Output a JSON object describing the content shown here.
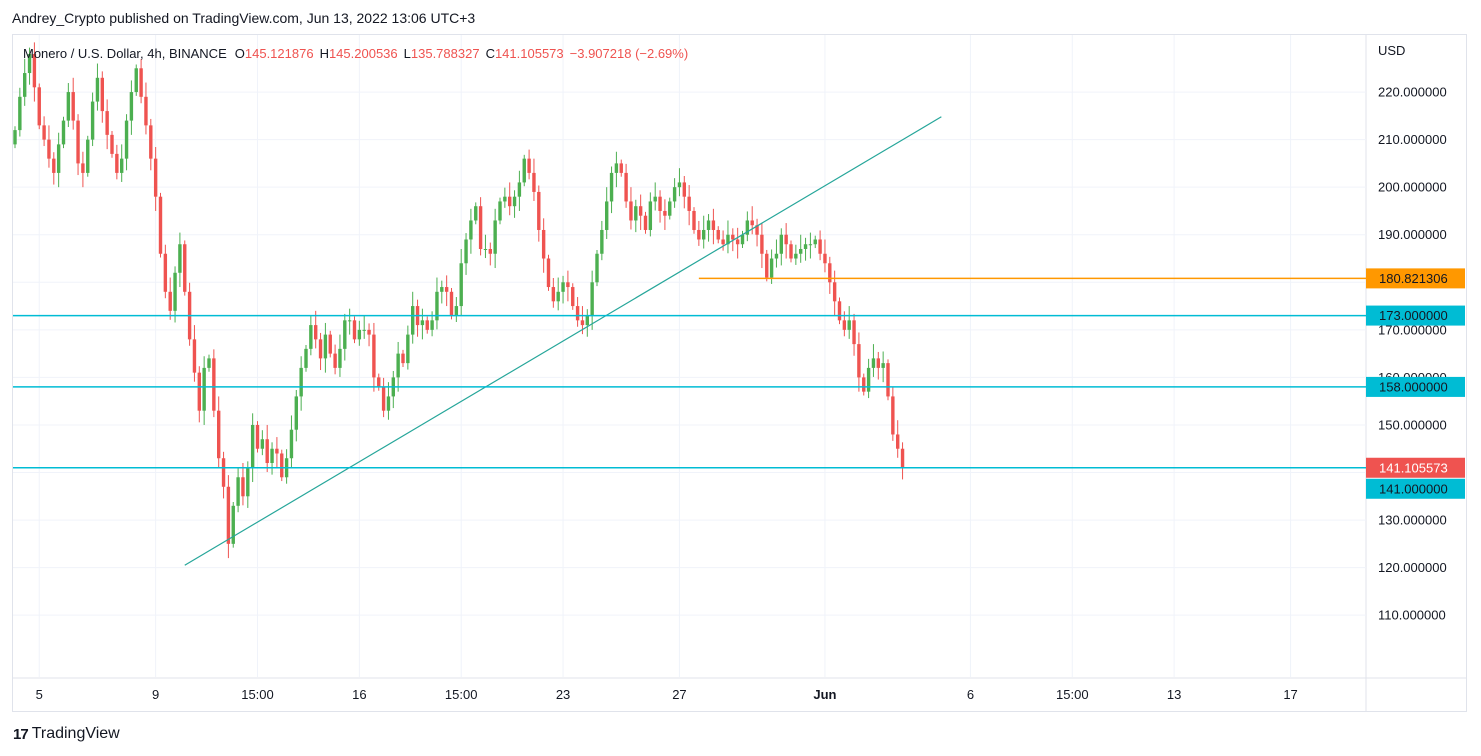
{
  "header": {
    "publish_line": "Andrey_Crypto published on TradingView.com, Jun 13, 2022 13:06 UTC+3"
  },
  "legend": {
    "symbol": "Monero / U.S. Dollar, 4h, BINANCE",
    "o_key": "O",
    "o_val": "145.121876",
    "h_key": "H",
    "h_val": "145.200536",
    "l_key": "L",
    "l_val": "135.788327",
    "c_key": "C",
    "c_val": "141.105573",
    "change": "−3.907218 (−2.69%)"
  },
  "currency": "USD",
  "footer": {
    "brand": "TradingView",
    "logo": "17"
  },
  "colors": {
    "up": "#26a69a",
    "up_body": "#4caf50",
    "down": "#ef5350",
    "level": "#00bcd4",
    "orange": "#ff9800",
    "trend": "#26a69a",
    "grid": "#f0f3fa"
  },
  "chart_data": {
    "type": "candlestick",
    "interval": "4h",
    "y_ticks": [
      110,
      120,
      130,
      140,
      150,
      160,
      170,
      180,
      190,
      200,
      210,
      220
    ],
    "y_tick_labels": [
      "110.000000",
      "120.000000",
      "130.000000",
      "140.000000",
      "150.000000",
      "160.000000",
      "170.000000",
      "180.000000",
      "190.000000",
      "200.000000",
      "210.000000",
      "220.000000"
    ],
    "ylim": [
      97,
      232
    ],
    "x_ticks": [
      {
        "label": "5",
        "bar": 5,
        "bold": false
      },
      {
        "label": "9",
        "bar": 29,
        "bold": false
      },
      {
        "label": "15:00",
        "bar": 50,
        "bold": false
      },
      {
        "label": "16",
        "bar": 71,
        "bold": false
      },
      {
        "label": "15:00",
        "bar": 92,
        "bold": false
      },
      {
        "label": "23",
        "bar": 113,
        "bold": false
      },
      {
        "label": "27",
        "bar": 137,
        "bold": false
      },
      {
        "label": "Jun",
        "bar": 167,
        "bold": true
      },
      {
        "label": "6",
        "bar": 197,
        "bold": false
      },
      {
        "label": "15:00",
        "bar": 218,
        "bold": false
      },
      {
        "label": "13",
        "bar": 239,
        "bold": false
      },
      {
        "label": "17",
        "bar": 263,
        "bold": false
      }
    ],
    "closes": [
      212,
      219,
      224,
      228,
      221,
      213,
      210,
      206,
      203,
      209,
      214,
      220,
      214,
      205,
      203,
      210,
      218,
      223,
      216,
      211,
      207,
      203,
      206,
      214,
      220,
      225,
      219,
      213,
      206,
      198,
      186,
      178,
      174,
      182,
      188,
      178,
      168,
      161,
      153,
      162,
      164,
      153,
      143,
      137,
      125,
      133,
      139,
      135,
      141,
      150,
      145,
      147,
      142,
      145,
      144,
      139,
      143,
      149,
      156,
      162,
      166,
      171,
      168,
      164,
      169,
      165,
      162,
      166,
      172,
      172,
      168,
      170,
      170,
      169,
      160,
      158,
      153,
      156,
      160,
      165,
      163,
      169,
      175,
      171,
      172,
      170,
      172,
      178,
      179,
      178,
      173,
      175,
      184,
      189,
      193,
      196,
      187,
      187,
      186,
      193,
      197,
      198,
      196,
      198,
      201,
      206,
      203,
      199,
      191,
      185,
      179,
      176,
      178,
      180,
      179,
      175,
      172,
      171,
      173,
      180,
      186,
      191,
      197,
      203,
      205,
      203,
      197,
      193,
      196,
      194,
      191,
      197,
      198,
      195,
      194,
      197,
      200,
      201,
      198,
      195,
      191,
      189,
      191,
      193,
      191,
      189,
      188,
      190,
      189,
      188,
      190,
      193,
      192,
      190,
      186,
      181,
      185,
      186,
      190,
      188,
      185,
      186,
      187,
      188,
      188,
      189,
      186,
      184,
      180,
      176,
      172,
      170,
      172,
      167,
      160,
      157,
      162,
      164,
      162,
      163,
      156,
      148,
      145,
      141
    ],
    "last_price": "141.105573",
    "levels": [
      {
        "value": 173,
        "label": "173.000000"
      },
      {
        "value": 158,
        "label": "158.000000"
      },
      {
        "value": 141,
        "label": "141.000000"
      }
    ],
    "resistance": {
      "value": 180.821306,
      "label": "180.821306",
      "from_bar": 141
    },
    "trendline": {
      "from": {
        "bar": 35,
        "price": 120.5
      },
      "to": {
        "bar": 191,
        "price": 214.8
      }
    }
  }
}
